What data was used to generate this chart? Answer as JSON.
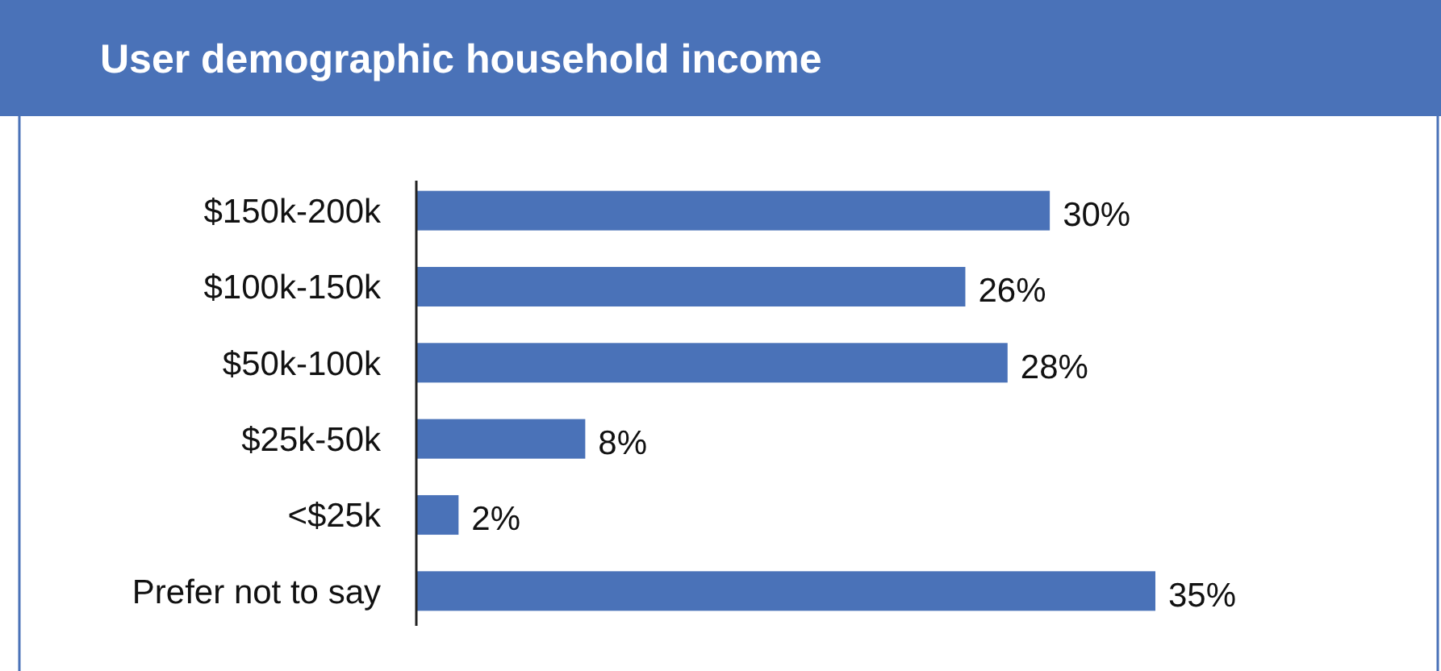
{
  "chart_data": {
    "type": "bar",
    "orientation": "horizontal",
    "title": "User demographic household income",
    "categories": [
      "$150k-200k",
      "$100k-150k",
      "$50k-100k",
      "$25k-50k",
      "<$25k",
      "Prefer not to say"
    ],
    "values": [
      30,
      26,
      28,
      8,
      2,
      35
    ],
    "value_labels": [
      "30%",
      "26%",
      "28%",
      "8%",
      "2%",
      "35%"
    ],
    "color": "#4a72b8"
  }
}
